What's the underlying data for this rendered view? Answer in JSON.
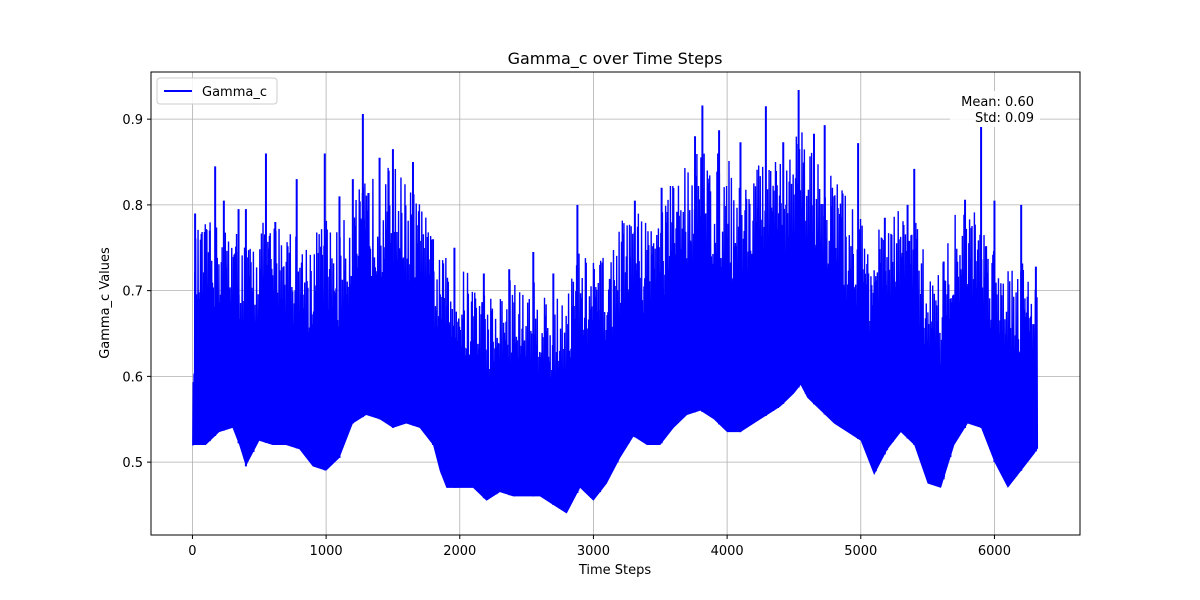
{
  "chart_data": {
    "type": "line",
    "title": "Gamma_c over Time Steps",
    "xlabel": "Time Steps",
    "ylabel": "Gamma_c Values",
    "xlim": [
      -310,
      6640
    ],
    "ylim": [
      0.415,
      0.955
    ],
    "xticks": [
      0,
      1000,
      2000,
      3000,
      4000,
      5000,
      6000
    ],
    "yticks": [
      0.5,
      0.6,
      0.7,
      0.8,
      0.9
    ],
    "xtick_labels": [
      "0",
      "1000",
      "2000",
      "3000",
      "4000",
      "5000",
      "6000"
    ],
    "ytick_labels": [
      "0.5",
      "0.6",
      "0.7",
      "0.8",
      "0.9"
    ],
    "grid": true,
    "legend_position": "upper-left",
    "stats": {
      "mean_label": "Mean: 0.60",
      "std_label": "Std: 0.09"
    },
    "series": [
      {
        "name": "Gamma_c",
        "color": "#0000ff",
        "x_start": 0,
        "x_end": 6320,
        "envelope_x": [
          0,
          20,
          100,
          200,
          300,
          350,
          400,
          450,
          500,
          600,
          700,
          800,
          900,
          1000,
          1100,
          1200,
          1300,
          1400,
          1500,
          1600,
          1700,
          1800,
          1850,
          1900,
          2000,
          2100,
          2200,
          2300,
          2400,
          2500,
          2600,
          2700,
          2800,
          2900,
          3000,
          3100,
          3200,
          3300,
          3400,
          3500,
          3600,
          3700,
          3800,
          3900,
          4000,
          4100,
          4200,
          4300,
          4400,
          4500,
          4550,
          4600,
          4700,
          4800,
          4900,
          5000,
          5100,
          5200,
          5300,
          5400,
          5500,
          5600,
          5700,
          5800,
          5900,
          6000,
          6100,
          6200,
          6300,
          6320
        ],
        "envelope_min": [
          0.52,
          0.52,
          0.52,
          0.535,
          0.54,
          0.52,
          0.495,
          0.51,
          0.525,
          0.52,
          0.52,
          0.515,
          0.495,
          0.49,
          0.505,
          0.545,
          0.555,
          0.55,
          0.54,
          0.545,
          0.54,
          0.52,
          0.49,
          0.47,
          0.47,
          0.47,
          0.455,
          0.465,
          0.46,
          0.46,
          0.46,
          0.45,
          0.44,
          0.47,
          0.455,
          0.475,
          0.505,
          0.53,
          0.52,
          0.52,
          0.54,
          0.555,
          0.56,
          0.55,
          0.535,
          0.535,
          0.545,
          0.555,
          0.565,
          0.58,
          0.59,
          0.575,
          0.56,
          0.545,
          0.535,
          0.525,
          0.485,
          0.515,
          0.535,
          0.52,
          0.475,
          0.47,
          0.52,
          0.545,
          0.54,
          0.5,
          0.47,
          0.49,
          0.51,
          0.515
        ],
        "envelope_max": [
          0.52,
          0.77,
          0.78,
          0.78,
          0.78,
          0.77,
          0.76,
          0.76,
          0.78,
          0.78,
          0.79,
          0.76,
          0.77,
          0.79,
          0.77,
          0.81,
          0.83,
          0.84,
          0.85,
          0.83,
          0.81,
          0.76,
          0.74,
          0.74,
          0.73,
          0.72,
          0.7,
          0.7,
          0.72,
          0.7,
          0.72,
          0.68,
          0.72,
          0.75,
          0.74,
          0.74,
          0.78,
          0.8,
          0.79,
          0.81,
          0.83,
          0.86,
          0.87,
          0.86,
          0.86,
          0.83,
          0.85,
          0.85,
          0.85,
          0.88,
          0.9,
          0.87,
          0.85,
          0.84,
          0.81,
          0.79,
          0.77,
          0.78,
          0.8,
          0.79,
          0.73,
          0.73,
          0.79,
          0.8,
          0.79,
          0.76,
          0.74,
          0.74,
          0.73,
          0.7
        ],
        "peaks": [
          {
            "x": 20,
            "y": 0.79
          },
          {
            "x": 130,
            "y": 0.77
          },
          {
            "x": 170,
            "y": 0.845
          },
          {
            "x": 235,
            "y": 0.805
          },
          {
            "x": 345,
            "y": 0.795
          },
          {
            "x": 400,
            "y": 0.795
          },
          {
            "x": 550,
            "y": 0.86
          },
          {
            "x": 620,
            "y": 0.78
          },
          {
            "x": 780,
            "y": 0.83
          },
          {
            "x": 990,
            "y": 0.86
          },
          {
            "x": 1100,
            "y": 0.81
          },
          {
            "x": 1200,
            "y": 0.83
          },
          {
            "x": 1275,
            "y": 0.906
          },
          {
            "x": 1400,
            "y": 0.855
          },
          {
            "x": 1500,
            "y": 0.865
          },
          {
            "x": 1650,
            "y": 0.85
          },
          {
            "x": 1800,
            "y": 0.76
          },
          {
            "x": 1960,
            "y": 0.75
          },
          {
            "x": 2180,
            "y": 0.72
          },
          {
            "x": 2370,
            "y": 0.725
          },
          {
            "x": 2550,
            "y": 0.745
          },
          {
            "x": 2700,
            "y": 0.72
          },
          {
            "x": 2880,
            "y": 0.8
          },
          {
            "x": 3050,
            "y": 0.73
          },
          {
            "x": 3310,
            "y": 0.805
          },
          {
            "x": 3510,
            "y": 0.82
          },
          {
            "x": 3760,
            "y": 0.88
          },
          {
            "x": 3815,
            "y": 0.916
          },
          {
            "x": 3940,
            "y": 0.887
          },
          {
            "x": 4100,
            "y": 0.873
          },
          {
            "x": 4290,
            "y": 0.915
          },
          {
            "x": 4420,
            "y": 0.873
          },
          {
            "x": 4535,
            "y": 0.934
          },
          {
            "x": 4650,
            "y": 0.883
          },
          {
            "x": 4730,
            "y": 0.893
          },
          {
            "x": 4980,
            "y": 0.872
          },
          {
            "x": 5180,
            "y": 0.785
          },
          {
            "x": 5350,
            "y": 0.8
          },
          {
            "x": 5400,
            "y": 0.842
          },
          {
            "x": 5620,
            "y": 0.734
          },
          {
            "x": 5780,
            "y": 0.806
          },
          {
            "x": 5900,
            "y": 0.891
          },
          {
            "x": 6000,
            "y": 0.805
          },
          {
            "x": 6200,
            "y": 0.8
          },
          {
            "x": 6310,
            "y": 0.728
          }
        ]
      }
    ]
  }
}
